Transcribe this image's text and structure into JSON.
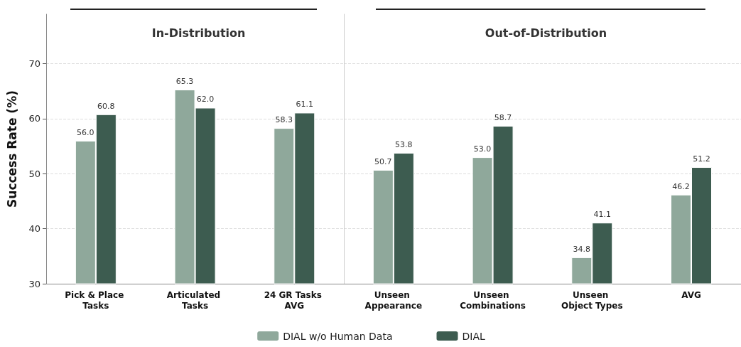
{
  "chart_data": [
    {
      "type": "bar",
      "title": "In-Distribution",
      "ylabel": "Success Rate (%)",
      "categories": [
        "Pick & Place Tasks",
        "Articulated Tasks",
        "24 GR Tasks AVG"
      ],
      "series": [
        {
          "name": "DIAL w/o Human Data",
          "color": "#8fa89b",
          "values": [
            56.0,
            65.3,
            58.3
          ],
          "value_labels": [
            "56.0",
            "65.3",
            "58.3"
          ]
        },
        {
          "name": "DIAL",
          "color": "#3d5c50",
          "values": [
            60.8,
            62.0,
            61.1
          ],
          "value_labels": [
            "60.8",
            "62.0",
            "61.1"
          ]
        }
      ],
      "ylim": [
        30,
        79
      ],
      "yticks": [
        30,
        40,
        50,
        60,
        70
      ],
      "grid": "y",
      "legend": "bottom"
    },
    {
      "type": "bar",
      "title": "Out-of-Distribution",
      "categories": [
        "Unseen Appearance",
        "Unseen Combinations",
        "Unseen Object Types",
        "AVG"
      ],
      "series": [
        {
          "name": "DIAL w/o Human Data",
          "color": "#8fa89b",
          "values": [
            50.7,
            53.0,
            34.8,
            46.2
          ],
          "value_labels": [
            "50.7",
            "53.0",
            "34.8",
            "46.2"
          ]
        },
        {
          "name": "DIAL",
          "color": "#3d5c50",
          "values": [
            53.8,
            58.7,
            41.1,
            51.2
          ],
          "value_labels": [
            "53.8",
            "58.7",
            "41.1",
            "51.2"
          ]
        }
      ],
      "ylim": [
        30,
        79
      ],
      "yticks": [
        30,
        40,
        50,
        60,
        70
      ],
      "grid": "y",
      "tick_labels": "x"
    }
  ]
}
